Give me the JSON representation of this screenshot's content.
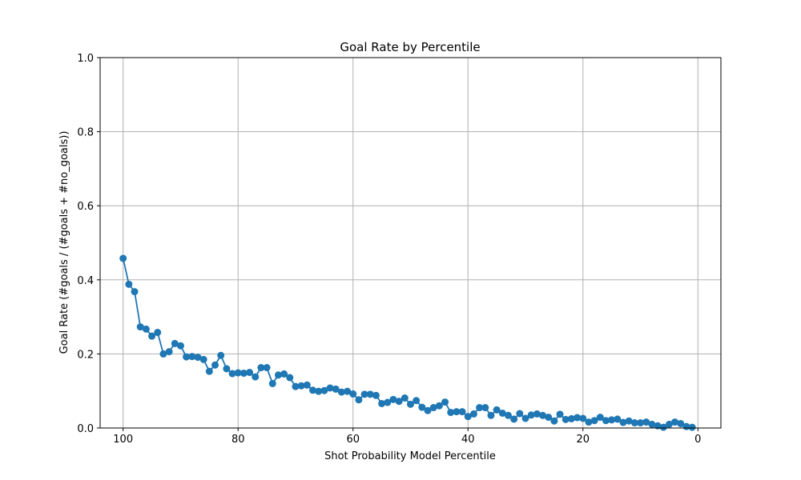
{
  "chart_data": {
    "type": "line",
    "title": "Goal Rate by Percentile",
    "xlabel": "Shot Probability Model Percentile",
    "ylabel": "Goal Rate (#goals / (#goals + #no_goals))",
    "xlim": [
      104,
      -4
    ],
    "ylim": [
      0,
      1.0
    ],
    "x_inverted": true,
    "xticks": [
      100,
      80,
      60,
      40,
      20,
      0
    ],
    "yticks": [
      0.0,
      0.2,
      0.4,
      0.6,
      0.8,
      1.0
    ],
    "xtick_labels": [
      "100",
      "80",
      "60",
      "40",
      "20",
      "0"
    ],
    "ytick_labels": [
      "0.0",
      "0.2",
      "0.4",
      "0.6",
      "0.8",
      "1.0"
    ],
    "grid": true,
    "legend": "none",
    "color": "#1f77b4",
    "marker": "circle",
    "x": [
      100,
      99,
      98,
      97,
      96,
      95,
      94,
      93,
      92,
      91,
      90,
      89,
      88,
      87,
      86,
      85,
      84,
      83,
      82,
      81,
      80,
      79,
      78,
      77,
      76,
      75,
      74,
      73,
      72,
      71,
      70,
      69,
      68,
      67,
      66,
      65,
      64,
      63,
      62,
      61,
      60,
      59,
      58,
      57,
      56,
      55,
      54,
      53,
      52,
      51,
      50,
      49,
      48,
      47,
      46,
      45,
      44,
      43,
      42,
      41,
      40,
      39,
      38,
      37,
      36,
      35,
      34,
      33,
      32,
      31,
      30,
      29,
      28,
      27,
      26,
      25,
      24,
      23,
      22,
      21,
      20,
      19,
      18,
      17,
      16,
      15,
      14,
      13,
      12,
      11,
      10,
      9,
      8,
      7,
      6,
      5,
      4,
      3,
      2,
      1
    ],
    "y": [
      0.458,
      0.388,
      0.368,
      0.273,
      0.267,
      0.248,
      0.258,
      0.2,
      0.206,
      0.228,
      0.222,
      0.192,
      0.193,
      0.191,
      0.185,
      0.153,
      0.17,
      0.196,
      0.16,
      0.147,
      0.149,
      0.148,
      0.15,
      0.138,
      0.163,
      0.163,
      0.12,
      0.143,
      0.146,
      0.136,
      0.112,
      0.114,
      0.116,
      0.102,
      0.099,
      0.101,
      0.108,
      0.105,
      0.097,
      0.099,
      0.092,
      0.076,
      0.091,
      0.091,
      0.088,
      0.066,
      0.069,
      0.077,
      0.072,
      0.081,
      0.064,
      0.074,
      0.056,
      0.047,
      0.055,
      0.06,
      0.07,
      0.042,
      0.044,
      0.044,
      0.031,
      0.038,
      0.055,
      0.055,
      0.034,
      0.049,
      0.04,
      0.034,
      0.024,
      0.039,
      0.026,
      0.035,
      0.038,
      0.034,
      0.029,
      0.019,
      0.037,
      0.023,
      0.025,
      0.028,
      0.026,
      0.016,
      0.02,
      0.029,
      0.02,
      0.022,
      0.024,
      0.015,
      0.019,
      0.014,
      0.014,
      0.016,
      0.01,
      0.006,
      0.002,
      0.01,
      0.016,
      0.012,
      0.004,
      0.002
    ]
  }
}
